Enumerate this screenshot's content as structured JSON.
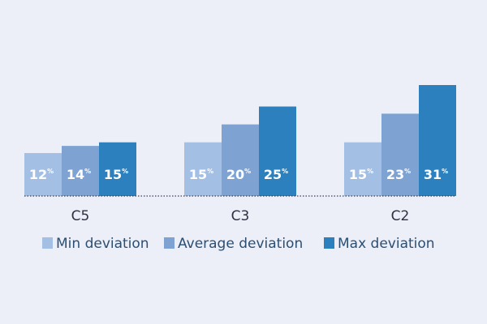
{
  "chart_data": {
    "type": "bar",
    "categories": [
      "C5",
      "C3",
      "C2"
    ],
    "series": [
      {
        "name": "Min deviation",
        "values": [
          12,
          15,
          15
        ],
        "color": "#a3bfe4"
      },
      {
        "name": "Average deviation",
        "values": [
          14,
          20,
          23
        ],
        "color": "#7ea3d3"
      },
      {
        "name": "Max deviation",
        "values": [
          15,
          25,
          31
        ],
        "color": "#2c80be"
      }
    ],
    "value_suffix": "%",
    "title": "",
    "xlabel": "",
    "ylabel": "",
    "ylim": [
      0,
      31
    ],
    "grid": false,
    "legend_position": "bottom"
  }
}
